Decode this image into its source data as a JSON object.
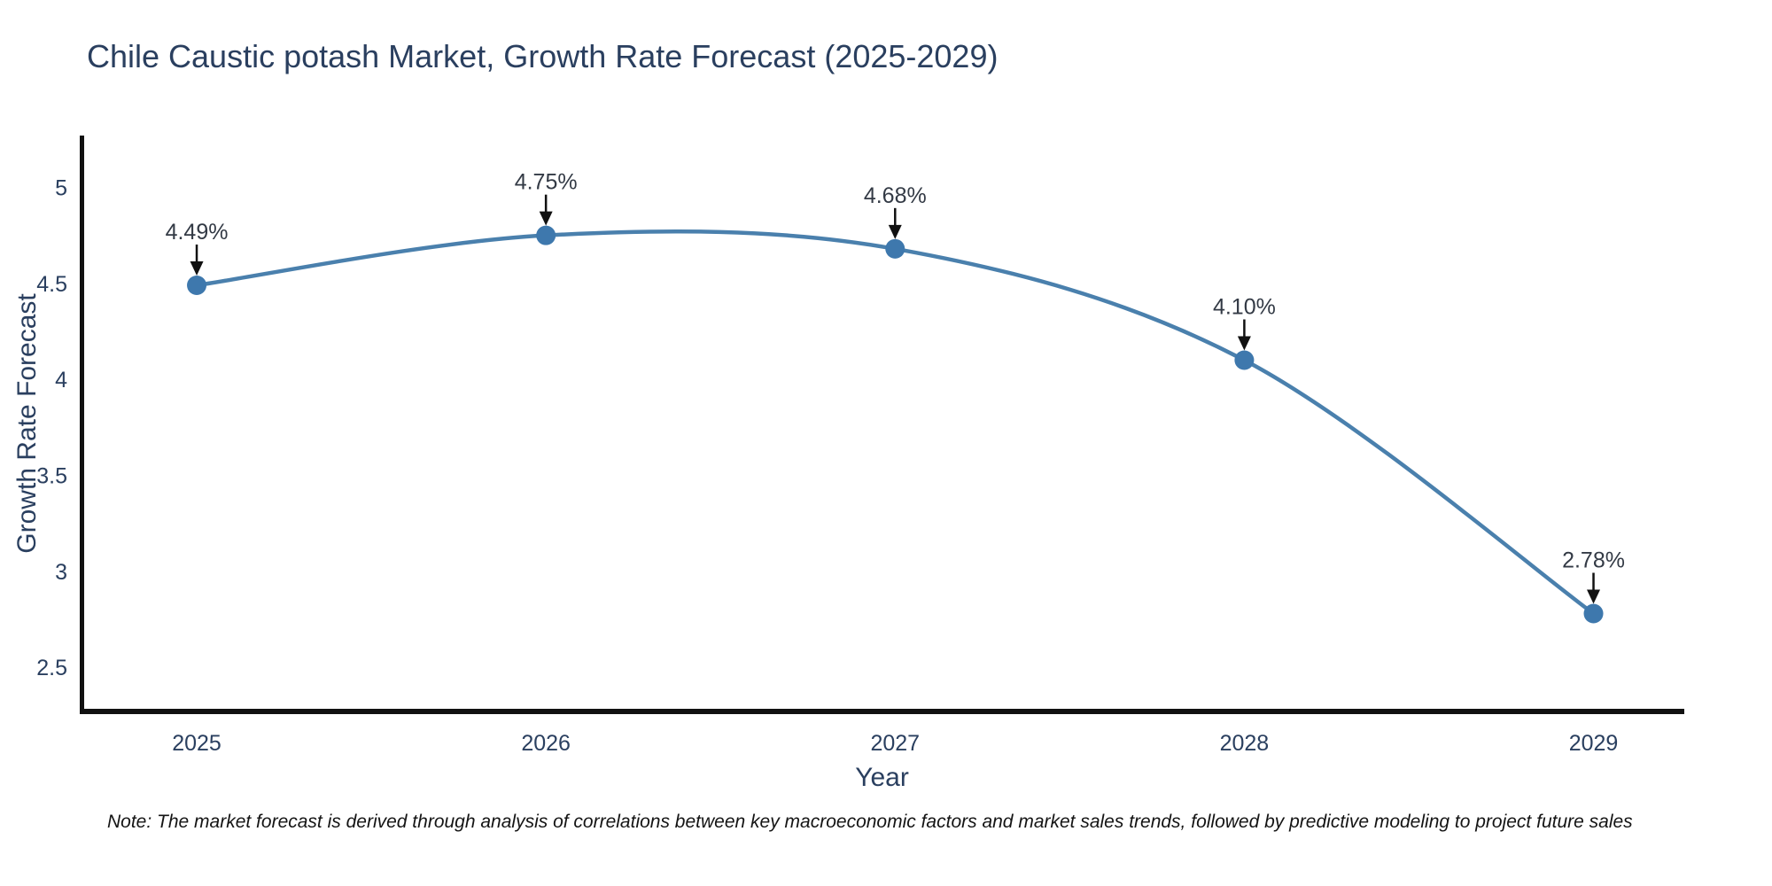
{
  "footnote": {
    "text": "Note: The market forecast is derived through analysis of correlations between key macroeconomic factors and market sales trends, followed by predictive modeling to project future sales"
  },
  "chart_data": {
    "type": "line",
    "line_shape": "spline",
    "title": "Chile Caustic potash Market, Growth Rate Forecast (2025-2029)",
    "xlabel": "Year",
    "ylabel": "Growth Rate Forecast",
    "categories": [
      2025,
      2026,
      2027,
      2028,
      2029
    ],
    "values": [
      4.49,
      4.75,
      4.68,
      4.1,
      2.78
    ],
    "point_labels": [
      "4.49%",
      "4.75%",
      "4.68%",
      "4.10%",
      "2.78%"
    ],
    "y_ticks": [
      2.5,
      3,
      3.5,
      4,
      4.5,
      5
    ],
    "x_range": [
      2024.665,
      2029.26
    ],
    "y_range": [
      2.27,
      5.27
    ],
    "grid": false,
    "legend_position": "none",
    "marker_size": 11,
    "line_width": 4.5,
    "colors": {
      "line": "#4a80ad",
      "marker": "#3e78ad",
      "axis": "#111111",
      "tick_text": "#2a3f5f",
      "axis_title_text": "#2a3f5f",
      "annotation_text": "#333a45",
      "arrow": "#111111",
      "background": "#ffffff"
    }
  }
}
